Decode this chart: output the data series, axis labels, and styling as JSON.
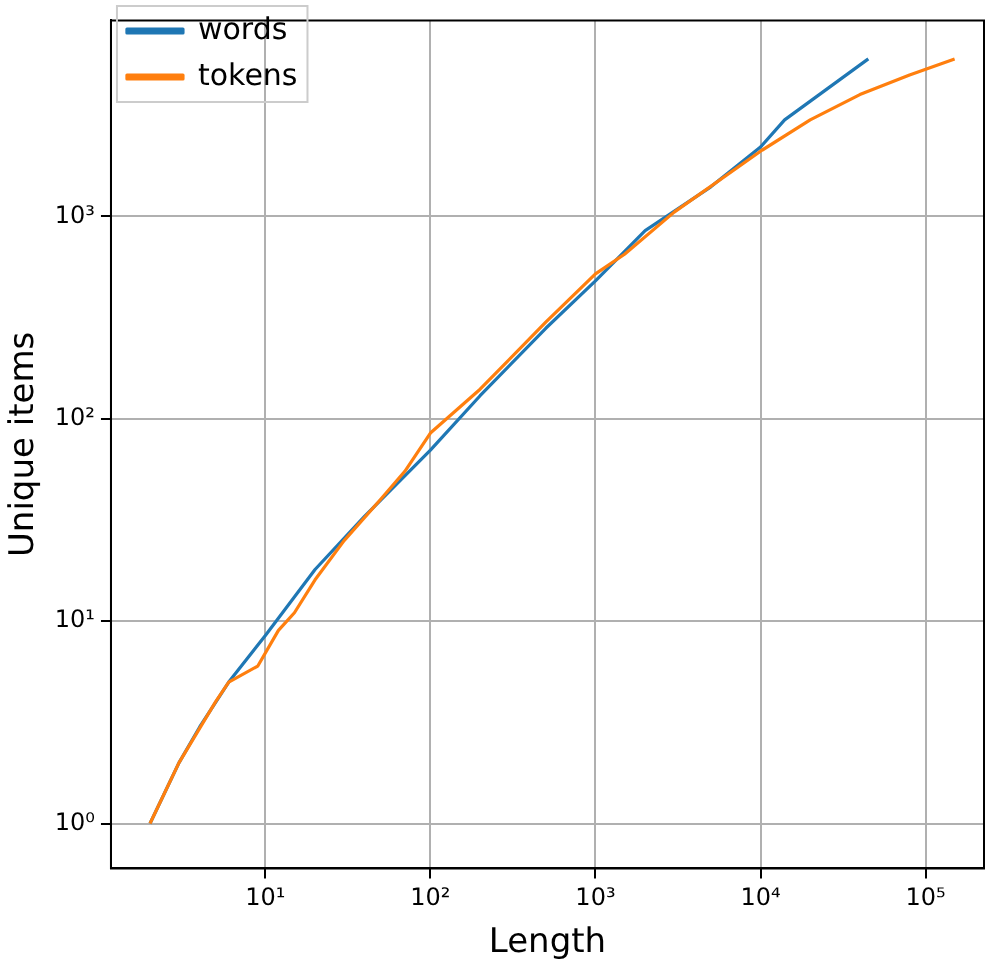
{
  "chart_data": {
    "type": "line",
    "xlabel": "Length",
    "ylabel": "Unique items",
    "log": "xy",
    "grid": true,
    "legend": "top left",
    "xlim": [
      1.16,
      226000
    ],
    "ylim": [
      0.63,
      9300
    ],
    "xticks": [
      {
        "value": 10,
        "label": "10¹"
      },
      {
        "value": 100,
        "label": "10²"
      },
      {
        "value": 1000,
        "label": "10³"
      },
      {
        "value": 10000,
        "label": "10⁴"
      },
      {
        "value": 100000,
        "label": "10⁵"
      }
    ],
    "yticks": [
      {
        "value": 1,
        "label": "10⁰"
      },
      {
        "value": 10,
        "label": "10¹"
      },
      {
        "value": 100,
        "label": "10²"
      },
      {
        "value": 1000,
        "label": "10³"
      }
    ],
    "series": [
      {
        "name": "words",
        "color": "#1f77b4",
        "x": [
          2,
          3,
          4,
          6,
          10,
          20,
          40,
          100,
          200,
          500,
          1000,
          2000,
          5000,
          10000,
          14000,
          45000
        ],
        "values": [
          1,
          2,
          3,
          5,
          8.5,
          18,
          33,
          70,
          130,
          280,
          480,
          850,
          1400,
          2200,
          3000,
          6000
        ]
      },
      {
        "name": "tokens",
        "color": "#ff7f0e",
        "x": [
          2,
          3,
          5,
          6,
          9,
          12,
          15,
          20,
          30,
          50,
          70,
          100,
          200,
          500,
          1000,
          1500,
          3000,
          10000,
          20000,
          40000,
          80000,
          150000
        ],
        "values": [
          1,
          2,
          4,
          5,
          6,
          9,
          11,
          16,
          25,
          40,
          55,
          85,
          140,
          300,
          520,
          650,
          1050,
          2100,
          3000,
          4000,
          5000,
          6000
        ]
      }
    ]
  }
}
